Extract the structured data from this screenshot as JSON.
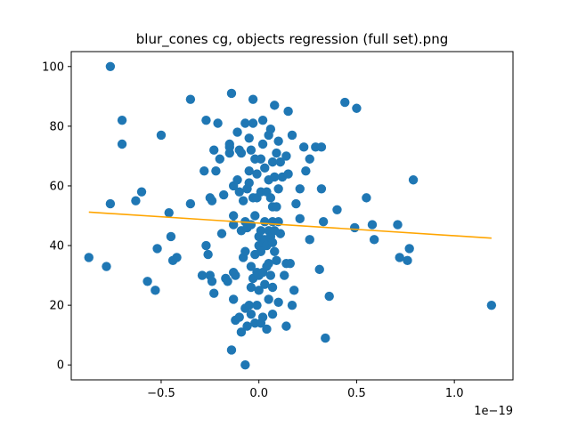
{
  "chart_data": {
    "type": "scatter",
    "title": "blur_cones cg, objects regression (full set).png",
    "xlabel": "",
    "ylabel": "",
    "x_offset_label": "1e−19",
    "xlim": [
      -0.96,
      1.3
    ],
    "ylim": [
      -5,
      105
    ],
    "xticks": [
      -0.5,
      0.0,
      0.5,
      1.0
    ],
    "xtick_labels": [
      "−0.5",
      "0.0",
      "0.5",
      "1.0"
    ],
    "yticks": [
      0,
      20,
      40,
      60,
      80,
      100
    ],
    "ytick_labels": [
      "0",
      "20",
      "40",
      "60",
      "80",
      "100"
    ],
    "grid": false,
    "colors": {
      "points": "#1f77b4",
      "regression": "#ffa500",
      "axes": "#000000"
    },
    "regression": {
      "x": [
        -0.87,
        1.19
      ],
      "y": [
        51.2,
        42.5
      ]
    },
    "points": [
      [
        -0.87,
        36
      ],
      [
        -0.78,
        33
      ],
      [
        -0.76,
        100
      ],
      [
        -0.76,
        54
      ],
      [
        -0.7,
        82
      ],
      [
        -0.7,
        74
      ],
      [
        -0.63,
        55
      ],
      [
        -0.6,
        58
      ],
      [
        -0.57,
        28
      ],
      [
        -0.53,
        25
      ],
      [
        -0.52,
        39
      ],
      [
        -0.5,
        77
      ],
      [
        -0.46,
        51
      ],
      [
        -0.45,
        43
      ],
      [
        -0.44,
        35
      ],
      [
        -0.42,
        36
      ],
      [
        -0.35,
        89
      ],
      [
        -0.35,
        54
      ],
      [
        -0.29,
        30
      ],
      [
        -0.28,
        65
      ],
      [
        -0.27,
        82
      ],
      [
        -0.27,
        40
      ],
      [
        -0.26,
        37
      ],
      [
        -0.25,
        30
      ],
      [
        -0.25,
        56
      ],
      [
        -0.24,
        55
      ],
      [
        -0.24,
        28
      ],
      [
        -0.23,
        72
      ],
      [
        -0.23,
        24
      ],
      [
        -0.22,
        65
      ],
      [
        -0.21,
        81
      ],
      [
        -0.2,
        69
      ],
      [
        -0.19,
        44
      ],
      [
        -0.18,
        57
      ],
      [
        -0.17,
        29
      ],
      [
        -0.16,
        28
      ],
      [
        -0.15,
        71
      ],
      [
        -0.15,
        73
      ],
      [
        -0.15,
        74
      ],
      [
        -0.14,
        91
      ],
      [
        -0.14,
        5
      ],
      [
        -0.13,
        50
      ],
      [
        -0.13,
        60
      ],
      [
        -0.13,
        47
      ],
      [
        -0.13,
        31
      ],
      [
        -0.13,
        22
      ],
      [
        -0.12,
        15
      ],
      [
        -0.12,
        30
      ],
      [
        -0.11,
        78
      ],
      [
        -0.11,
        62
      ],
      [
        -0.1,
        58
      ],
      [
        -0.1,
        72
      ],
      [
        -0.1,
        16
      ],
      [
        -0.09,
        45
      ],
      [
        -0.09,
        11
      ],
      [
        -0.09,
        71
      ],
      [
        -0.08,
        55
      ],
      [
        -0.08,
        36
      ],
      [
        -0.07,
        81
      ],
      [
        -0.07,
        48
      ],
      [
        -0.07,
        38
      ],
      [
        -0.07,
        19
      ],
      [
        -0.07,
        0
      ],
      [
        -0.06,
        59
      ],
      [
        -0.06,
        46
      ],
      [
        -0.06,
        13
      ],
      [
        -0.05,
        76
      ],
      [
        -0.05,
        65
      ],
      [
        -0.05,
        61
      ],
      [
        -0.05,
        20
      ],
      [
        -0.04,
        72
      ],
      [
        -0.04,
        47
      ],
      [
        -0.04,
        33
      ],
      [
        -0.04,
        26
      ],
      [
        -0.04,
        17
      ],
      [
        -0.03,
        89
      ],
      [
        -0.03,
        81
      ],
      [
        -0.03,
        56
      ],
      [
        -0.03,
        29
      ],
      [
        -0.02,
        69
      ],
      [
        -0.02,
        50
      ],
      [
        -0.02,
        37
      ],
      [
        -0.02,
        14
      ],
      [
        -0.01,
        64
      ],
      [
        -0.01,
        56
      ],
      [
        -0.01,
        31
      ],
      [
        -0.01,
        20
      ],
      [
        0.0,
        43
      ],
      [
        0.0,
        40
      ],
      [
        0.0,
        30
      ],
      [
        0.0,
        25
      ],
      [
        0.01,
        69
      ],
      [
        0.01,
        58
      ],
      [
        0.01,
        45
      ],
      [
        0.01,
        38
      ],
      [
        0.01,
        14
      ],
      [
        0.02,
        82
      ],
      [
        0.02,
        74
      ],
      [
        0.02,
        41
      ],
      [
        0.02,
        31
      ],
      [
        0.02,
        16
      ],
      [
        0.03,
        66
      ],
      [
        0.03,
        48
      ],
      [
        0.03,
        42
      ],
      [
        0.03,
        27
      ],
      [
        0.04,
        58
      ],
      [
        0.04,
        40
      ],
      [
        0.04,
        33
      ],
      [
        0.04,
        12
      ],
      [
        0.05,
        77
      ],
      [
        0.05,
        62
      ],
      [
        0.05,
        45
      ],
      [
        0.05,
        34
      ],
      [
        0.05,
        22
      ],
      [
        0.06,
        79
      ],
      [
        0.06,
        56
      ],
      [
        0.06,
        43
      ],
      [
        0.06,
        30
      ],
      [
        0.07,
        68
      ],
      [
        0.07,
        53
      ],
      [
        0.07,
        48
      ],
      [
        0.07,
        41
      ],
      [
        0.07,
        26
      ],
      [
        0.07,
        17
      ],
      [
        0.08,
        87
      ],
      [
        0.08,
        63
      ],
      [
        0.08,
        45
      ],
      [
        0.08,
        38
      ],
      [
        0.09,
        71
      ],
      [
        0.09,
        53
      ],
      [
        0.09,
        35
      ],
      [
        0.1,
        75
      ],
      [
        0.1,
        59
      ],
      [
        0.1,
        48
      ],
      [
        0.1,
        21
      ],
      [
        0.11,
        68
      ],
      [
        0.11,
        44
      ],
      [
        0.12,
        63
      ],
      [
        0.13,
        30
      ],
      [
        0.14,
        70
      ],
      [
        0.14,
        34
      ],
      [
        0.14,
        13
      ],
      [
        0.15,
        85
      ],
      [
        0.15,
        64
      ],
      [
        0.16,
        34
      ],
      [
        0.17,
        77
      ],
      [
        0.17,
        20
      ],
      [
        0.18,
        25
      ],
      [
        0.19,
        54
      ],
      [
        0.21,
        59
      ],
      [
        0.21,
        49
      ],
      [
        0.23,
        73
      ],
      [
        0.24,
        65
      ],
      [
        0.26,
        42
      ],
      [
        0.26,
        69
      ],
      [
        0.29,
        73
      ],
      [
        0.31,
        32
      ],
      [
        0.32,
        73
      ],
      [
        0.32,
        59
      ],
      [
        0.33,
        48
      ],
      [
        0.34,
        9
      ],
      [
        0.36,
        23
      ],
      [
        0.4,
        52
      ],
      [
        0.44,
        88
      ],
      [
        0.49,
        46
      ],
      [
        0.5,
        86
      ],
      [
        0.55,
        56
      ],
      [
        0.58,
        47
      ],
      [
        0.59,
        42
      ],
      [
        0.71,
        47
      ],
      [
        0.72,
        36
      ],
      [
        0.76,
        35
      ],
      [
        0.77,
        39
      ],
      [
        0.79,
        62
      ],
      [
        1.19,
        20
      ]
    ]
  }
}
